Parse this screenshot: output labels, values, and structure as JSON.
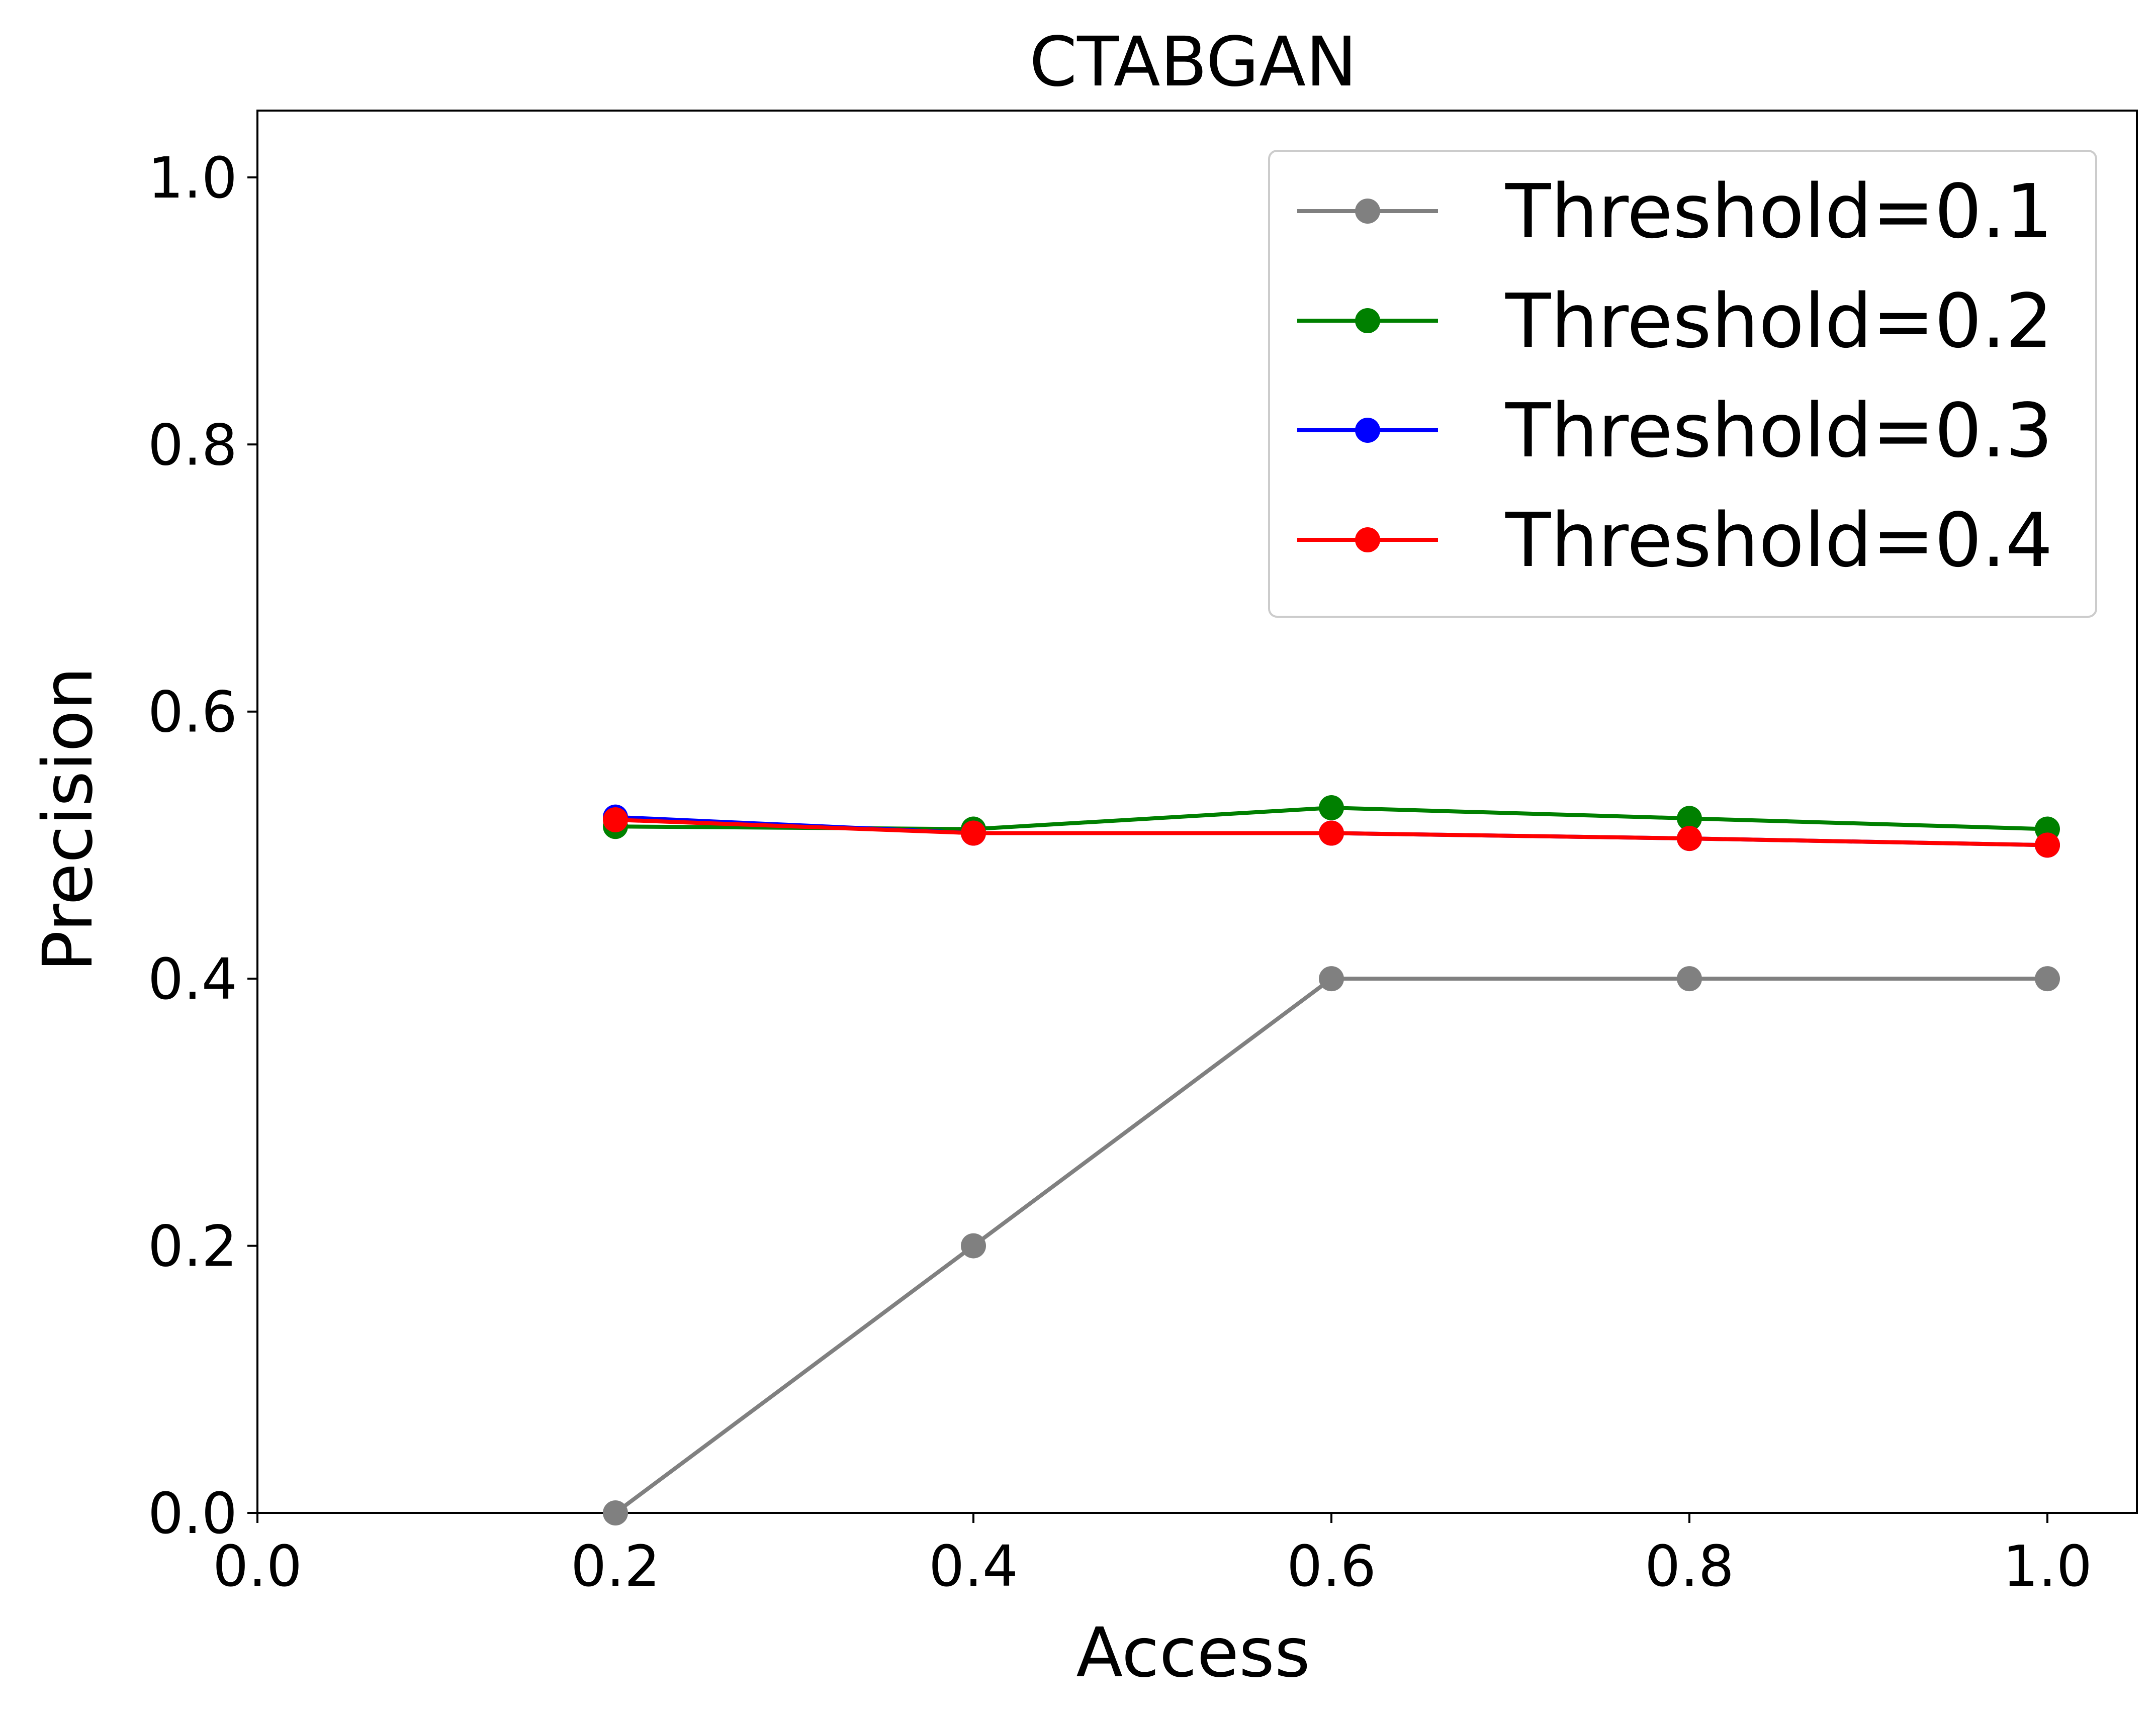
{
  "chart_data": {
    "type": "line",
    "title": "CTABGAN",
    "xlabel": "Access",
    "ylabel": "Precision",
    "xlim": [
      0.0,
      1.05
    ],
    "ylim": [
      0.0,
      1.05
    ],
    "xticks": [
      "0.0",
      "0.2",
      "0.4",
      "0.6",
      "0.8",
      "1.0"
    ],
    "yticks": [
      "0.0",
      "0.2",
      "0.4",
      "0.6",
      "0.8",
      "1.0"
    ],
    "grid": false,
    "legend_position": "top-right",
    "x": [
      0.2,
      0.4,
      0.6,
      0.8,
      1.0
    ],
    "series": [
      {
        "name": "Threshold=0.1",
        "color": "#808080",
        "values": [
          0.0,
          0.2,
          0.4,
          0.4,
          0.4
        ]
      },
      {
        "name": "Threshold=0.2",
        "color": "#008000",
        "values": [
          0.514,
          0.512,
          0.528,
          0.52,
          0.512
        ]
      },
      {
        "name": "Threshold=0.3",
        "color": "#0000ff",
        "values": [
          0.521,
          0.509,
          0.509,
          0.505,
          0.5
        ]
      },
      {
        "name": "Threshold=0.4",
        "color": "#ff0000",
        "values": [
          0.519,
          0.509,
          0.509,
          0.505,
          0.5
        ]
      }
    ]
  }
}
